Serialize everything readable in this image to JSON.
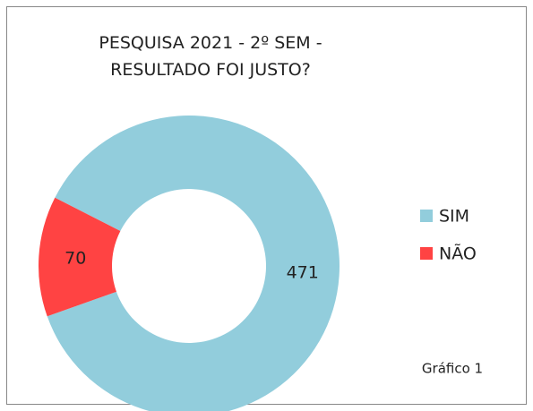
{
  "chart_data": {
    "type": "donut",
    "title": "PESQUISA 2021 - 2º SEM - RESULTADO FOI JUSTO?",
    "categories": [
      "SIM",
      "NÃO"
    ],
    "values": [
      471,
      70
    ],
    "colors": [
      "#92cddc",
      "#ff4343"
    ],
    "legend": "right",
    "annotation": "Gráfico 1"
  }
}
